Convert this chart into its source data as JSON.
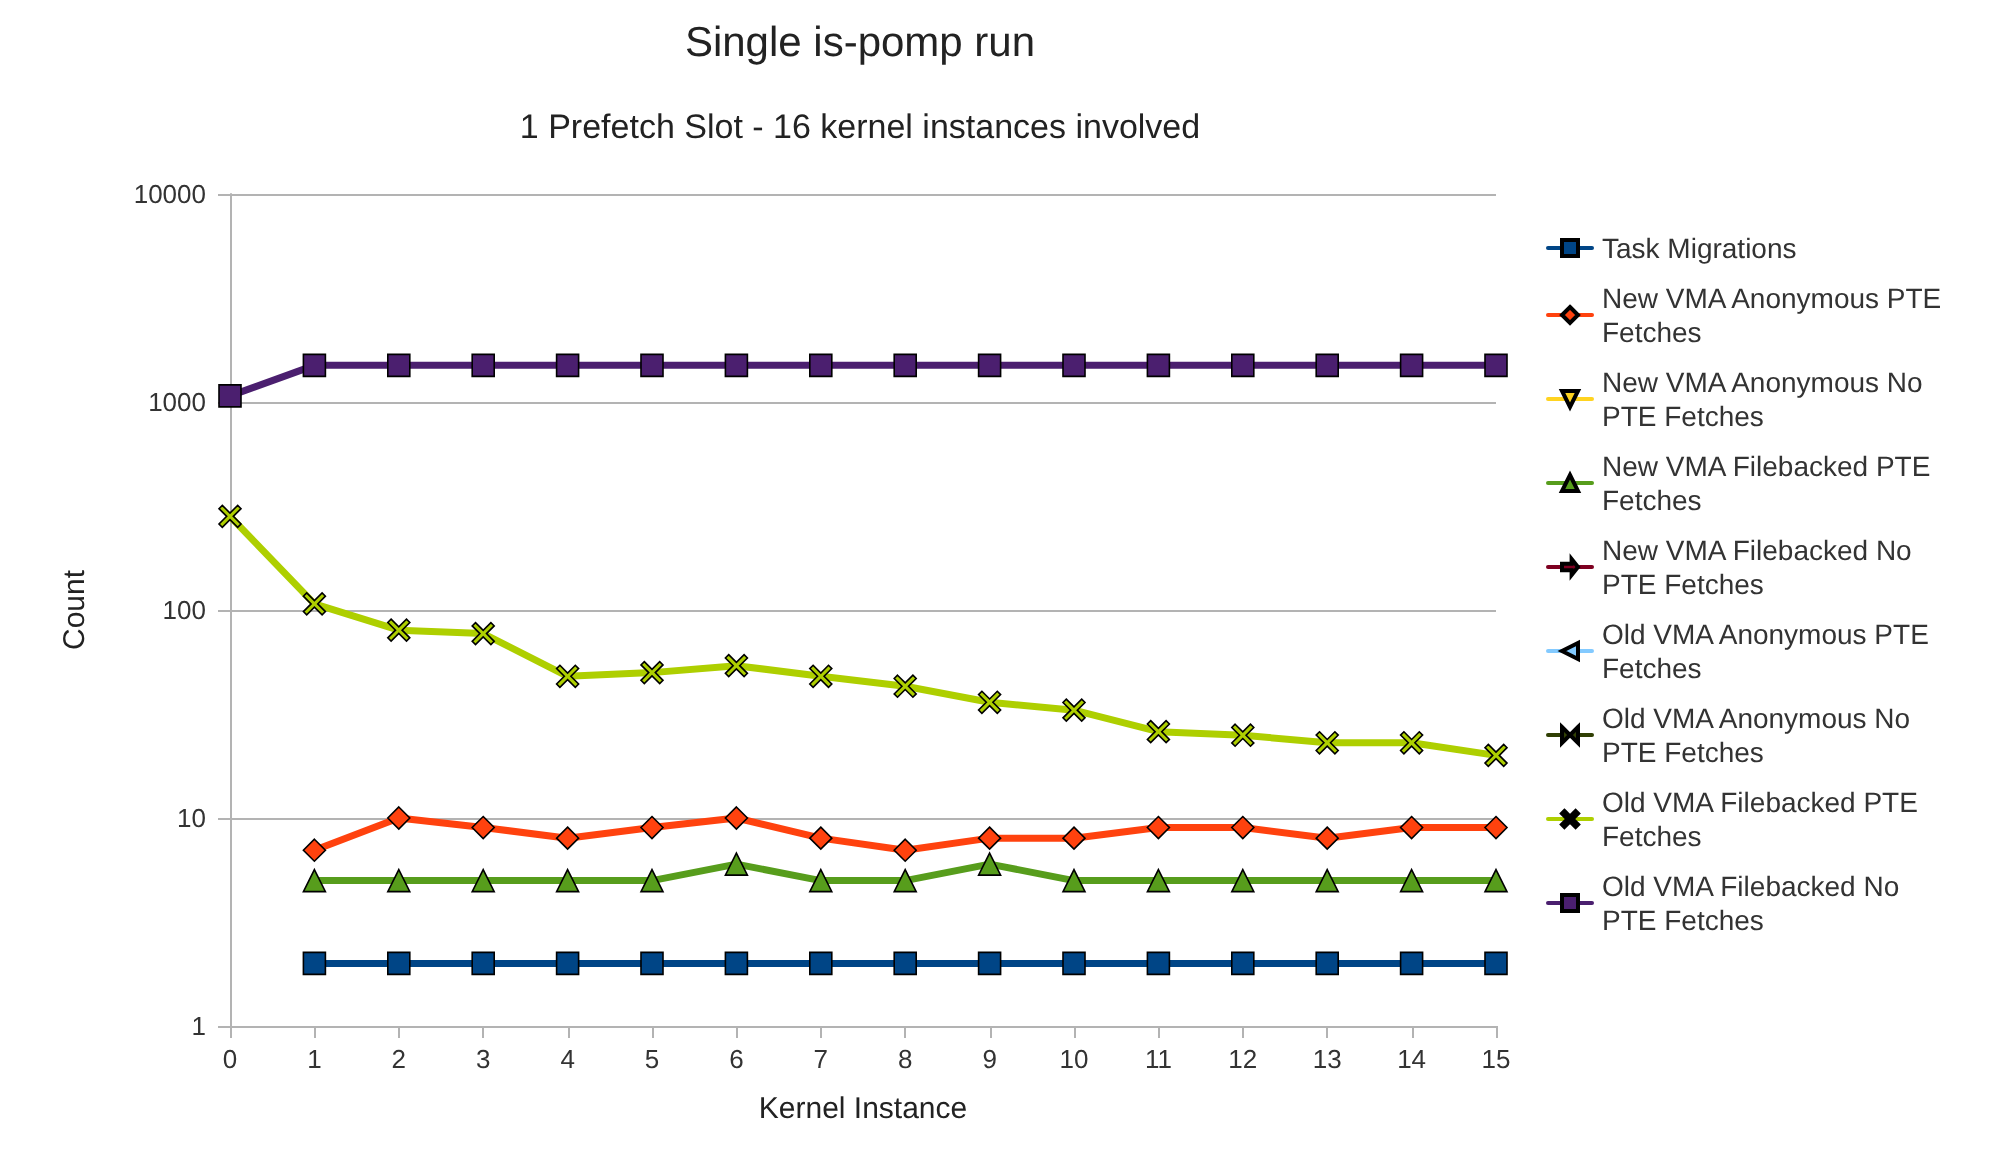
{
  "chart_data": {
    "type": "line",
    "title": "Single is-pomp run",
    "subtitle": "1 Prefetch Slot - 16 kernel instances involved",
    "xlabel": "Kernel Instance",
    "ylabel": "Count",
    "x": [
      0,
      1,
      2,
      3,
      4,
      5,
      6,
      7,
      8,
      9,
      10,
      11,
      12,
      13,
      14,
      15
    ],
    "xlim": [
      0,
      15
    ],
    "xticks": [
      0,
      1,
      2,
      3,
      4,
      5,
      6,
      7,
      8,
      9,
      10,
      11,
      12,
      13,
      14,
      15
    ],
    "ylim": [
      1,
      10000
    ],
    "yticks": [
      1,
      10,
      100,
      1000,
      10000
    ],
    "log": "y",
    "grid": "y",
    "legend": "right",
    "series": [
      {
        "name": "Task Migrations",
        "color": "#004586",
        "marker": "square",
        "values": [
          null,
          2,
          2,
          2,
          2,
          2,
          2,
          2,
          2,
          2,
          2,
          2,
          2,
          2,
          2,
          2
        ]
      },
      {
        "name": "New VMA Anonymous PTE Fetches",
        "color": "#ff420e",
        "marker": "diamond",
        "values": [
          null,
          7,
          10,
          9,
          8,
          9,
          10,
          8,
          7,
          8,
          8,
          9,
          9,
          8,
          9,
          9
        ]
      },
      {
        "name": "New VMA Anonymous No PTE Fetches",
        "color": "#ffd320",
        "marker": "triangle-down",
        "values": [
          null,
          null,
          null,
          null,
          null,
          null,
          null,
          null,
          null,
          null,
          null,
          null,
          null,
          null,
          null,
          null
        ]
      },
      {
        "name": "New VMA Filebacked PTE Fetches",
        "color": "#579d1c",
        "marker": "triangle",
        "values": [
          null,
          5,
          5,
          5,
          5,
          5,
          6,
          5,
          5,
          6,
          5,
          5,
          5,
          5,
          5,
          5
        ]
      },
      {
        "name": "New VMA Filebacked No PTE Fetches",
        "color": "#7e0021",
        "marker": "arrow",
        "values": [
          null,
          null,
          null,
          null,
          null,
          null,
          null,
          null,
          null,
          null,
          null,
          null,
          null,
          null,
          null,
          null
        ]
      },
      {
        "name": "Old VMA Anonymous PTE Fetches",
        "color": "#83caff",
        "marker": "triangle-left",
        "values": [
          null,
          null,
          null,
          null,
          null,
          null,
          null,
          null,
          null,
          null,
          null,
          null,
          null,
          null,
          null,
          null
        ]
      },
      {
        "name": "Old VMA Anonymous No PTE Fetches",
        "color": "#314004",
        "marker": "bowtie",
        "values": [
          null,
          null,
          null,
          null,
          null,
          null,
          null,
          null,
          null,
          null,
          null,
          null,
          null,
          null,
          null,
          null
        ]
      },
      {
        "name": "Old VMA Filebacked PTE Fetches",
        "color": "#aecf00",
        "marker": "cross",
        "values": [
          282,
          107,
          80,
          77,
          48,
          50,
          54,
          48,
          43,
          36,
          33,
          26,
          25,
          23,
          23,
          20
        ]
      },
      {
        "name": "Old VMA Filebacked No PTE Fetches",
        "color": "#4b1f6f",
        "marker": "square",
        "values": [
          1070,
          1500,
          1500,
          1500,
          1500,
          1500,
          1500,
          1500,
          1500,
          1500,
          1500,
          1500,
          1500,
          1500,
          1500,
          1500
        ]
      }
    ]
  }
}
